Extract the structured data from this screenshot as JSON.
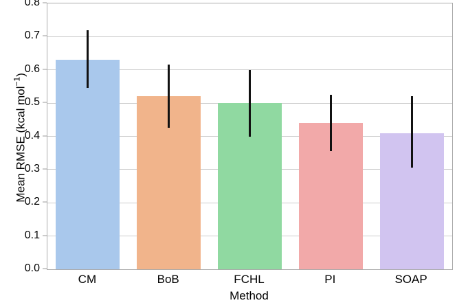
{
  "chart_data": {
    "type": "bar",
    "title": "",
    "xlabel": "Method",
    "ylabel": "Mean RMSE (kcal mol⁻¹)",
    "ylabel_parts": {
      "base": "Mean RMSE (kcal mol",
      "sup": "−1",
      "close": ")"
    },
    "categories": [
      "CM",
      "BoB",
      "FCHL",
      "PI",
      "SOAP"
    ],
    "values": [
      0.63,
      0.52,
      0.5,
      0.44,
      0.41
    ],
    "error_low": [
      0.545,
      0.425,
      0.4,
      0.355,
      0.305
    ],
    "error_high": [
      0.72,
      0.615,
      0.6,
      0.525,
      0.52
    ],
    "bar_colors": [
      "#a9c8ec",
      "#f1b48b",
      "#90d9a1",
      "#f2a9a9",
      "#d1c4f0"
    ],
    "errorbar_color": "#111111",
    "ylim": [
      0.0,
      0.8
    ],
    "yticks": [
      0.0,
      0.1,
      0.2,
      0.3,
      0.4,
      0.5,
      0.6,
      0.7,
      0.8
    ],
    "grid": "horizontal",
    "grid_color": "#cccccc",
    "spine_color": "#aaaaaa",
    "legend": "none"
  }
}
